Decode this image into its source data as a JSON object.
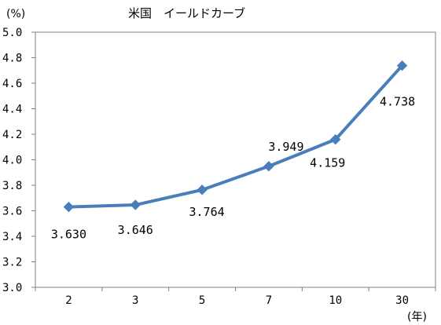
{
  "chart_data": {
    "type": "line",
    "title": "米国　イールドカーブ",
    "ylabel": "(%)",
    "xlabel": "(年)",
    "categories": [
      "2",
      "3",
      "5",
      "7",
      "10",
      "30"
    ],
    "series": [
      {
        "values": [
          3.63,
          3.646,
          3.764,
          3.949,
          4.159,
          4.738
        ],
        "labels": [
          "3.630",
          "3.646",
          "3.764",
          "3.949",
          "4.159",
          "4.738"
        ]
      }
    ],
    "ylim": [
      3.0,
      5.0
    ],
    "yticks": [
      "3.0",
      "3.2",
      "3.4",
      "3.6",
      "3.8",
      "4.0",
      "4.2",
      "4.4",
      "4.6",
      "4.8",
      "5.0"
    ],
    "grid": false,
    "legend": "none",
    "line_color": "#4a7ebb",
    "axis_color": "#808080"
  }
}
